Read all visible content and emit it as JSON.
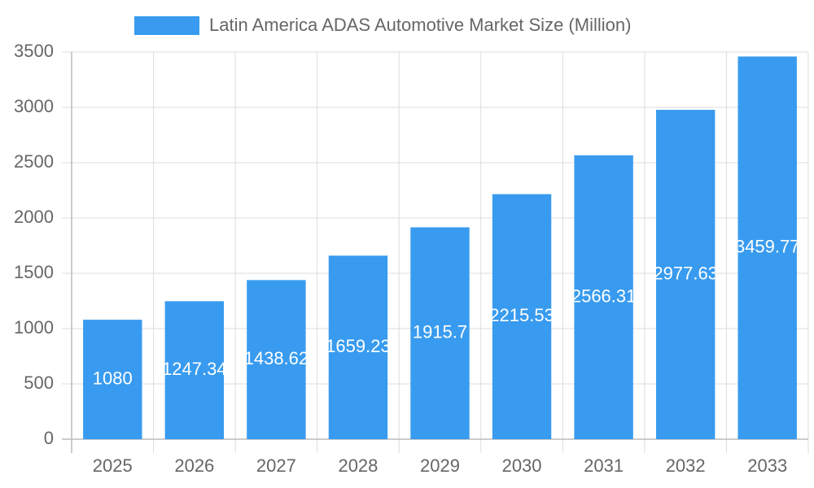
{
  "chart_data": {
    "type": "bar",
    "categories": [
      "2025",
      "2026",
      "2027",
      "2028",
      "2029",
      "2030",
      "2031",
      "2032",
      "2033"
    ],
    "series": [
      {
        "name": "Latin America ADAS Automotive Market Size (Million)",
        "color": "#389bef",
        "values": [
          1080,
          1247.34,
          1438.62,
          1659.23,
          1915.7,
          2215.53,
          2566.31,
          2977.63,
          3459.77
        ]
      }
    ],
    "ylim": [
      0,
      3500
    ],
    "yticks": [
      0,
      500,
      1000,
      1500,
      2000,
      2500,
      3000,
      3500
    ],
    "grid": true
  }
}
